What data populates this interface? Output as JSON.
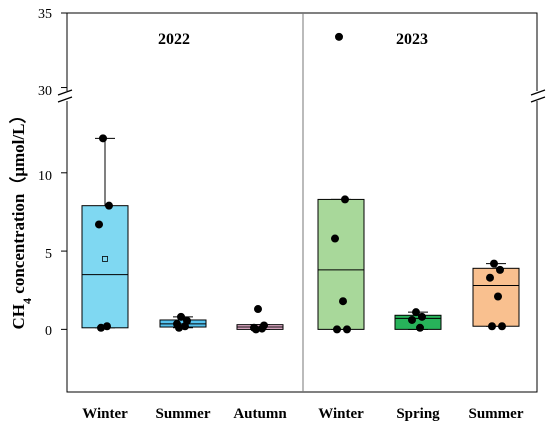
{
  "chart_data": {
    "type": "box",
    "ylabel": {
      "main": "CH",
      "sub": "4",
      "rest": " concentration（μmol/L）"
    },
    "y_axis": {
      "lower_range": [
        -4,
        13.5
      ],
      "upper_range": [
        29.5,
        35
      ],
      "lower_ticks": [
        "0",
        "5",
        "10"
      ],
      "upper_ticks": [
        "30",
        "35"
      ],
      "broken": true
    },
    "panels": [
      {
        "label": "2022"
      },
      {
        "label": "2023"
      }
    ],
    "boxes": [
      {
        "category": "Winter",
        "panel": 0,
        "color": "#7fd8f2",
        "q1": 0.1,
        "median": 3.5,
        "q3": 7.9,
        "whisker_low": 0.1,
        "whisker_high": 12.2,
        "mean": 4.5,
        "points": [
          12.2,
          7.9,
          6.7,
          0.2,
          0.1
        ]
      },
      {
        "category": "Summer",
        "panel": 0,
        "color": "#55c3f0",
        "q1": 0.15,
        "median": 0.35,
        "q3": 0.6,
        "whisker_low": 0.1,
        "whisker_high": 0.8,
        "mean": null,
        "points": [
          0.8,
          0.55,
          0.35,
          0.2,
          0.1
        ]
      },
      {
        "category": "Autumn",
        "panel": 0,
        "color": "#f0b8d6",
        "q1": 0.0,
        "median": 0.15,
        "q3": 0.3,
        "whisker_low": 0.0,
        "whisker_high": 0.3,
        "mean": null,
        "points": [
          1.3,
          0.25,
          0.1,
          0.05,
          0.0
        ]
      },
      {
        "category": "Winter",
        "panel": 1,
        "color": "#a8d89a",
        "q1": 0.0,
        "median": 3.8,
        "q3": 8.3,
        "whisker_low": 0.0,
        "whisker_high": 8.3,
        "mean": null,
        "points": [
          33.4,
          8.3,
          5.8,
          1.8,
          0.0,
          0.0
        ]
      },
      {
        "category": "Spring",
        "panel": 1,
        "color": "#27b35a",
        "q1": 0.0,
        "median": 0.7,
        "q3": 0.9,
        "whisker_low": 0.0,
        "whisker_high": 1.1,
        "mean": null,
        "points": [
          1.1,
          0.8,
          0.6,
          0.1
        ]
      },
      {
        "category": "Summer",
        "panel": 1,
        "color": "#f9c08f",
        "q1": 0.2,
        "median": 2.8,
        "q3": 3.9,
        "whisker_low": 0.2,
        "whisker_high": 4.2,
        "mean": null,
        "points": [
          4.2,
          3.8,
          3.3,
          2.1,
          0.2,
          0.2
        ]
      }
    ]
  }
}
